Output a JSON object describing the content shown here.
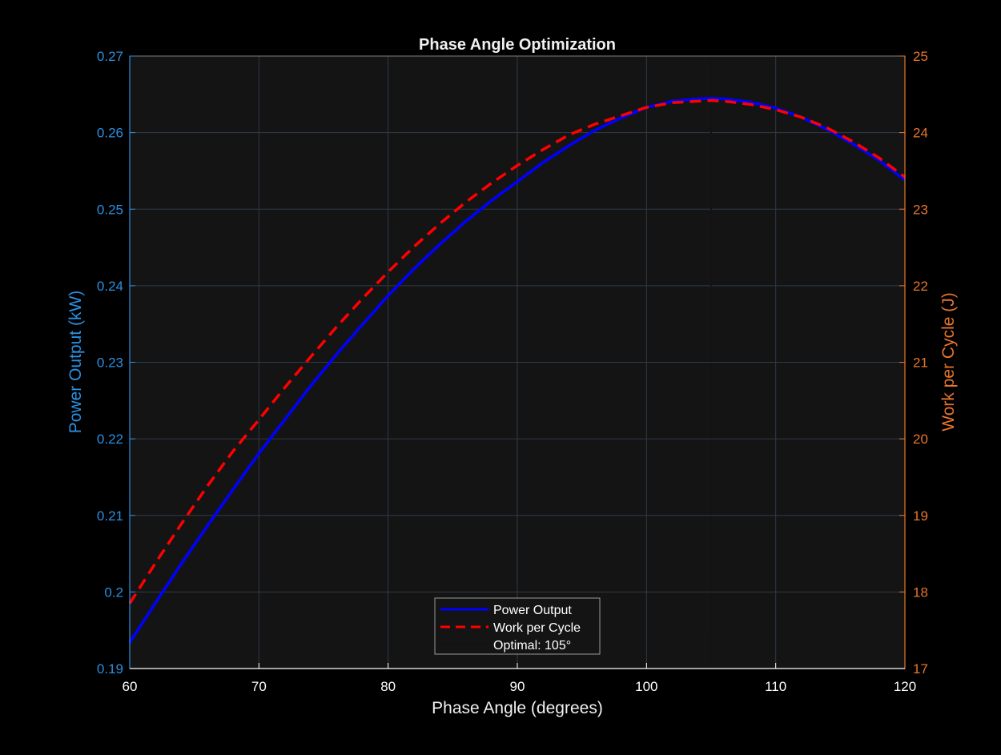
{
  "chart_data": {
    "type": "line",
    "title": "Phase Angle Optimization",
    "xlabel": "Phase Angle (degrees)",
    "ylabel_left": "Power Output (kW)",
    "ylabel_right": "Work per Cycle (J)",
    "xlim": [
      60,
      120
    ],
    "ylim_left": [
      0.19,
      0.27
    ],
    "ylim_right": [
      17,
      25
    ],
    "xticks": [
      "60",
      "70",
      "80",
      "90",
      "100",
      "110",
      "120"
    ],
    "yticks_left": [
      "0.19",
      "0.2",
      "0.21",
      "0.22",
      "0.23",
      "0.24",
      "0.25",
      "0.26",
      "0.27"
    ],
    "yticks_right": [
      "17",
      "18",
      "19",
      "20",
      "21",
      "22",
      "23",
      "24",
      "25"
    ],
    "grid": true,
    "legend_position": "bottom-center",
    "colors": {
      "background": "#000000",
      "axes_background": "#141414",
      "grid": "#2f3b48",
      "left_axis": "#2b8fe0",
      "right_axis": "#e8752a",
      "power_line": "#0000ff",
      "work_line": "#ff0000",
      "optimal_line": "#111111"
    },
    "series": [
      {
        "name": "Power Output",
        "axis": "left",
        "style": "solid",
        "x": [
          60,
          62,
          64,
          66,
          68,
          70,
          72,
          74,
          76,
          78,
          80,
          82,
          84,
          86,
          88,
          90,
          92,
          94,
          96,
          98,
          100,
          102,
          104,
          105,
          106,
          108,
          110,
          112,
          114,
          116,
          118,
          120
        ],
        "values": [
          0.1934,
          0.1986,
          0.2037,
          0.2086,
          0.2134,
          0.2181,
          0.2225,
          0.2269,
          0.231,
          0.2349,
          0.2387,
          0.2422,
          0.2454,
          0.2484,
          0.2511,
          0.2536,
          0.2561,
          0.2583,
          0.2603,
          0.2619,
          0.2633,
          0.2641,
          0.2644,
          0.2645,
          0.2644,
          0.264,
          0.2632,
          0.262,
          0.2604,
          0.2585,
          0.2564,
          0.2538
        ]
      },
      {
        "name": "Work per Cycle",
        "axis": "right",
        "style": "dashed",
        "x": [
          60,
          62,
          64,
          66,
          68,
          70,
          72,
          74,
          76,
          78,
          80,
          82,
          84,
          86,
          88,
          90,
          92,
          94,
          96,
          98,
          100,
          102,
          104,
          105,
          106,
          108,
          110,
          112,
          114,
          116,
          118,
          120
        ],
        "values": [
          17.85,
          18.38,
          18.89,
          19.38,
          19.84,
          20.25,
          20.67,
          21.07,
          21.46,
          21.83,
          22.18,
          22.51,
          22.81,
          23.09,
          23.34,
          23.57,
          23.78,
          23.97,
          24.11,
          24.22,
          24.33,
          24.39,
          24.41,
          24.42,
          24.41,
          24.37,
          24.3,
          24.2,
          24.06,
          23.88,
          23.67,
          23.42
        ]
      }
    ],
    "annotations": [
      {
        "type": "vline",
        "x": 105,
        "style": "dotted",
        "label": "Optimal: 105°"
      }
    ]
  }
}
